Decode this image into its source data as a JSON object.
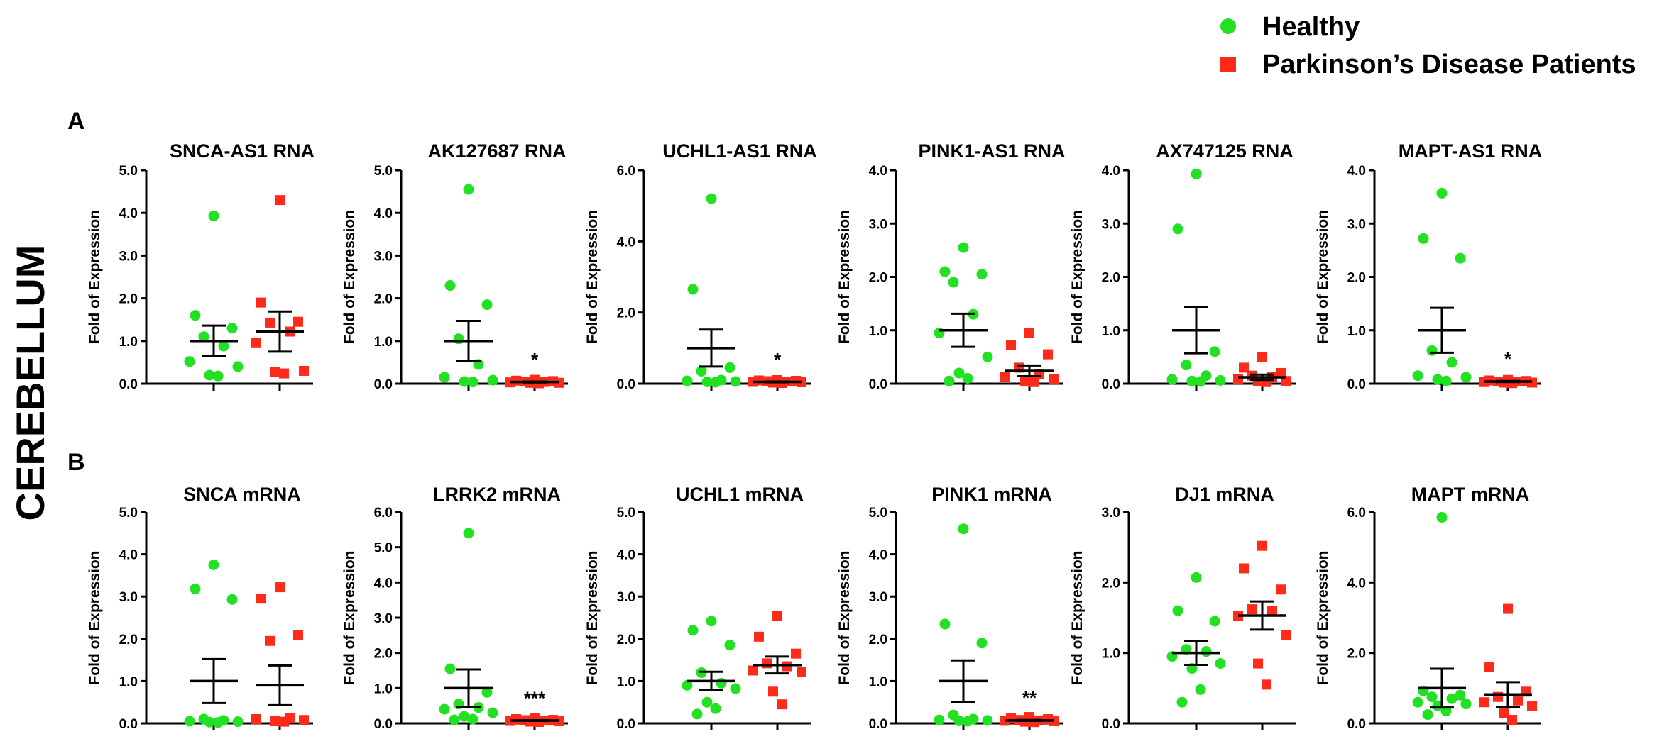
{
  "figure": {
    "region_label": "CEREBELLUM",
    "panel_labels": [
      "A",
      "B"
    ]
  },
  "legend": {
    "position": "top-right",
    "items": [
      {
        "label": "Healthy",
        "marker": "circle",
        "color": "#22e022"
      },
      {
        "label": "Parkinson’s Disease Patients",
        "marker": "square",
        "color": "#ff2a1a"
      }
    ]
  },
  "chart_data": [
    {
      "type": "scatter",
      "panel": "A",
      "title": "SNCA-AS1 RNA",
      "ylabel": "Fold of Expression",
      "ylim": [
        0,
        5
      ],
      "yticks": [
        "0.0",
        "1.0",
        "2.0",
        "3.0",
        "4.0",
        "5.0"
      ],
      "significance": "",
      "series": [
        {
          "name": "Healthy",
          "values": [
            3.93,
            1.6,
            1.3,
            1.1,
            0.88,
            0.52,
            0.4,
            0.2,
            0.18
          ],
          "mean": 1.0,
          "sem": 0.36
        },
        {
          "name": "Parkinson’s Disease Patients",
          "values": [
            4.3,
            1.9,
            1.45,
            1.43,
            1.22,
            0.95,
            0.3,
            0.27,
            0.24
          ],
          "mean": 1.22,
          "sem": 0.47
        }
      ]
    },
    {
      "type": "scatter",
      "panel": "A",
      "title": "AK127687 RNA",
      "ylabel": "Fold of Expression",
      "ylim": [
        0,
        5
      ],
      "yticks": [
        "0.0",
        "1.0",
        "2.0",
        "3.0",
        "4.0",
        "5.0"
      ],
      "significance": "*",
      "series": [
        {
          "name": "Healthy",
          "values": [
            4.55,
            2.3,
            1.85,
            1.05,
            0.45,
            0.15,
            0.08,
            0.05,
            0.04
          ],
          "mean": 1.0,
          "sem": 0.47
        },
        {
          "name": "Parkinson’s Disease Patients",
          "values": [
            0.09,
            0.07,
            0.06,
            0.05,
            0.04,
            0.03,
            0.02,
            0.02,
            0.01
          ],
          "mean": 0.04,
          "sem": 0.01
        }
      ]
    },
    {
      "type": "scatter",
      "panel": "A",
      "title": "UCHL1-AS1 RNA",
      "ylabel": "Fold of Expression",
      "ylim": [
        0,
        6
      ],
      "yticks": [
        "0.0",
        "2.0",
        "4.0",
        "6.0"
      ],
      "significance": "*",
      "series": [
        {
          "name": "Healthy",
          "values": [
            5.2,
            2.65,
            0.45,
            0.35,
            0.1,
            0.08,
            0.06,
            0.05,
            0.04
          ],
          "mean": 1.0,
          "sem": 0.52
        },
        {
          "name": "Parkinson’s Disease Patients",
          "values": [
            0.1,
            0.09,
            0.08,
            0.07,
            0.06,
            0.05,
            0.04,
            0.03,
            0.02
          ],
          "mean": 0.05,
          "sem": 0.01
        }
      ]
    },
    {
      "type": "scatter",
      "panel": "A",
      "title": "PINK1-AS1 RNA",
      "ylabel": "Fold of Expression",
      "ylim": [
        0,
        4
      ],
      "yticks": [
        "0.0",
        "1.0",
        "2.0",
        "3.0",
        "4.0"
      ],
      "significance": "",
      "series": [
        {
          "name": "Healthy",
          "values": [
            2.55,
            2.1,
            2.05,
            1.9,
            1.3,
            0.95,
            0.5,
            0.2,
            0.1,
            0.05
          ],
          "mean": 1.0,
          "sem": 0.31
        },
        {
          "name": "Parkinson’s Disease Patients",
          "values": [
            0.95,
            0.72,
            0.55,
            0.3,
            0.18,
            0.12,
            0.08,
            0.05,
            0.03
          ],
          "mean": 0.24,
          "sem": 0.1
        }
      ]
    },
    {
      "type": "scatter",
      "panel": "A",
      "title": "AX747125 RNA",
      "ylabel": "Fold of Expression",
      "ylim": [
        0,
        4
      ],
      "yticks": [
        "0.0",
        "1.0",
        "2.0",
        "3.0",
        "4.0"
      ],
      "significance": "",
      "series": [
        {
          "name": "Healthy",
          "values": [
            3.93,
            2.9,
            0.6,
            0.35,
            0.15,
            0.08,
            0.06,
            0.05,
            0.04
          ],
          "mean": 1.0,
          "sem": 0.43
        },
        {
          "name": "Parkinson’s Disease Patients",
          "values": [
            0.5,
            0.3,
            0.2,
            0.15,
            0.12,
            0.08,
            0.05,
            0.04,
            0.03
          ],
          "mean": 0.12,
          "sem": 0.05
        }
      ]
    },
    {
      "type": "scatter",
      "panel": "A",
      "title": "MAPT-AS1 RNA",
      "ylabel": "Fold of Expression",
      "ylim": [
        0,
        4
      ],
      "yticks": [
        "0.0",
        "1.0",
        "2.0",
        "3.0",
        "4.0"
      ],
      "significance": "*",
      "series": [
        {
          "name": "Healthy",
          "values": [
            3.57,
            2.72,
            2.35,
            0.62,
            0.4,
            0.15,
            0.12,
            0.08,
            0.05
          ],
          "mean": 1.0,
          "sem": 0.42
        },
        {
          "name": "Parkinson’s Disease Patients",
          "values": [
            0.07,
            0.06,
            0.05,
            0.04,
            0.04,
            0.03,
            0.02,
            0.02,
            0.01
          ],
          "mean": 0.04,
          "sem": 0.01
        }
      ]
    },
    {
      "type": "scatter",
      "panel": "B",
      "title": "SNCA mRNA",
      "ylabel": "Fold of Expression",
      "ylim": [
        0,
        5
      ],
      "yticks": [
        "0.0",
        "1.0",
        "2.0",
        "3.0",
        "4.0",
        "5.0"
      ],
      "significance": "",
      "series": [
        {
          "name": "Healthy",
          "values": [
            3.75,
            3.18,
            2.93,
            0.1,
            0.07,
            0.05,
            0.04,
            0.03,
            0.02
          ],
          "mean": 1.0,
          "sem": 0.52
        },
        {
          "name": "Parkinson’s Disease Patients",
          "values": [
            3.22,
            2.95,
            2.08,
            1.95,
            0.12,
            0.1,
            0.08,
            0.05,
            0.04
          ],
          "mean": 0.9,
          "sem": 0.47
        }
      ]
    },
    {
      "type": "scatter",
      "panel": "B",
      "title": "LRRK2 mRNA",
      "ylabel": "Fold of Expression",
      "ylim": [
        0,
        6
      ],
      "yticks": [
        "0.0",
        "1.0",
        "2.0",
        "3.0",
        "4.0",
        "5.0",
        "6.0"
      ],
      "significance": "***",
      "series": [
        {
          "name": "Healthy",
          "values": [
            5.4,
            1.55,
            0.88,
            0.55,
            0.45,
            0.4,
            0.3,
            0.2,
            0.12,
            0.1
          ],
          "mean": 1.0,
          "sem": 0.53
        },
        {
          "name": "Parkinson’s Disease Patients",
          "values": [
            0.14,
            0.12,
            0.1,
            0.09,
            0.08,
            0.07,
            0.06,
            0.05,
            0.04
          ],
          "mean": 0.08,
          "sem": 0.01
        }
      ]
    },
    {
      "type": "scatter",
      "panel": "B",
      "title": "UCHL1 mRNA",
      "ylabel": "Fold of Expression",
      "ylim": [
        0,
        5
      ],
      "yticks": [
        "0.0",
        "1.0",
        "2.0",
        "3.0",
        "4.0",
        "5.0"
      ],
      "significance": "",
      "series": [
        {
          "name": "Healthy",
          "values": [
            2.42,
            2.2,
            1.85,
            1.2,
            0.95,
            0.9,
            0.82,
            0.5,
            0.35,
            0.22
          ],
          "mean": 1.0,
          "sem": 0.22
        },
        {
          "name": "Parkinson’s Disease Patients",
          "values": [
            2.55,
            2.05,
            1.65,
            1.42,
            1.35,
            1.25,
            1.22,
            0.75,
            0.45
          ],
          "mean": 1.38,
          "sem": 0.2
        }
      ]
    },
    {
      "type": "scatter",
      "panel": "B",
      "title": "PINK1 mRNA",
      "ylabel": "Fold of Expression",
      "ylim": [
        0,
        5
      ],
      "yticks": [
        "0.0",
        "1.0",
        "2.0",
        "3.0",
        "4.0",
        "5.0"
      ],
      "significance": "**",
      "series": [
        {
          "name": "Healthy",
          "values": [
            4.6,
            2.35,
            1.9,
            0.2,
            0.1,
            0.08,
            0.07,
            0.06,
            0.05
          ],
          "mean": 1.0,
          "sem": 0.49
        },
        {
          "name": "Parkinson’s Disease Patients",
          "values": [
            0.15,
            0.12,
            0.1,
            0.08,
            0.07,
            0.06,
            0.05,
            0.04,
            0.03
          ],
          "mean": 0.07,
          "sem": 0.01
        }
      ]
    },
    {
      "type": "scatter",
      "panel": "B",
      "title": "DJ1 mRNA",
      "ylabel": "Fold of Expression",
      "ylim": [
        0,
        3
      ],
      "yticks": [
        "0.0",
        "1.0",
        "2.0",
        "3.0"
      ],
      "significance": "",
      "series": [
        {
          "name": "Healthy",
          "values": [
            2.07,
            1.6,
            1.45,
            1.05,
            1.02,
            0.95,
            0.85,
            0.78,
            0.48,
            0.3
          ],
          "mean": 1.0,
          "sem": 0.17
        },
        {
          "name": "Parkinson’s Disease Patients",
          "values": [
            2.52,
            2.2,
            1.9,
            1.62,
            1.6,
            1.52,
            1.25,
            0.85,
            0.55
          ],
          "mean": 1.53,
          "sem": 0.2
        }
      ]
    },
    {
      "type": "scatter",
      "panel": "B",
      "title": "MAPT mRNA",
      "ylabel": "Fold of Expression",
      "ylim": [
        0,
        6
      ],
      "yticks": [
        "0.0",
        "2.0",
        "4.0",
        "6.0"
      ],
      "significance": "",
      "series": [
        {
          "name": "Healthy",
          "values": [
            5.85,
            0.92,
            0.8,
            0.75,
            0.7,
            0.6,
            0.55,
            0.5,
            0.35,
            0.25
          ],
          "mean": 1.0,
          "sem": 0.55
        },
        {
          "name": "Parkinson’s Disease Patients",
          "values": [
            3.25,
            1.6,
            0.9,
            0.75,
            0.65,
            0.6,
            0.5,
            0.3,
            0.1
          ],
          "mean": 0.82,
          "sem": 0.35
        }
      ]
    }
  ]
}
